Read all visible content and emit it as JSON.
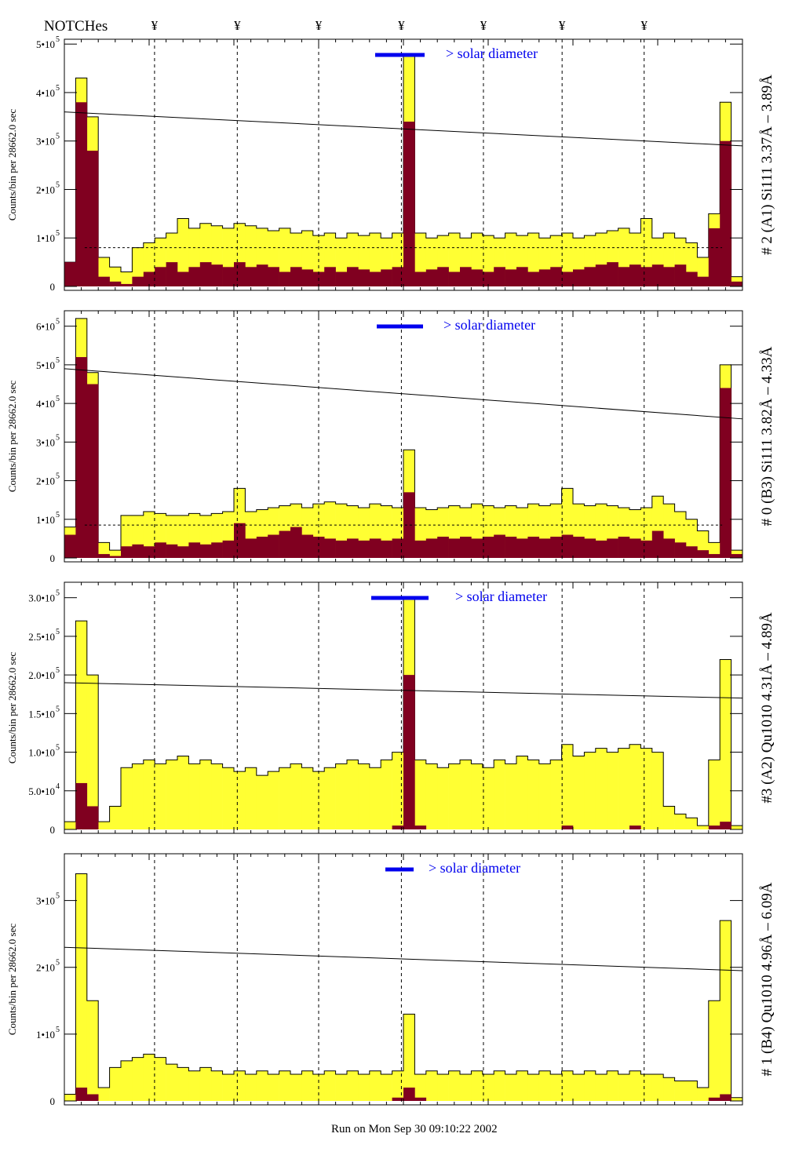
{
  "header": {
    "notches_label": "NOTCHes",
    "notch_marker": "¥"
  },
  "footer": {
    "run_text": "Run on Mon Sep 30 09:10:22 2002"
  },
  "colors": {
    "yellow": "#ffff33",
    "red": "#800020",
    "blue": "#0000ee",
    "black": "#000000"
  },
  "chart_data": [
    {
      "type": "bar",
      "title": "# 2 (A1) Si111  3.37Å – 3.89Å",
      "ylabel": "Counts/bin per  28662.0 sec",
      "legend": "> solar diameter",
      "ylim": [
        0,
        510000
      ],
      "yticks": [
        {
          "v": 0,
          "l": "0",
          "e": ""
        },
        {
          "v": 100000,
          "l": "1•10",
          "e": "5"
        },
        {
          "v": 200000,
          "l": "2•10",
          "e": "5"
        },
        {
          "v": 300000,
          "l": "3•10",
          "e": "5"
        },
        {
          "v": 400000,
          "l": "4•10",
          "e": "5"
        },
        {
          "v": 500000,
          "l": "5•10",
          "e": "5"
        }
      ],
      "notches": [
        0.133,
        0.255,
        0.375,
        0.497,
        0.618,
        0.734,
        0.855
      ],
      "fit_line": [
        360000,
        290000
      ],
      "dashed_level": 80000,
      "total_counts": [
        50000,
        430000,
        350000,
        60000,
        40000,
        30000,
        80000,
        90000,
        100000,
        110000,
        140000,
        120000,
        130000,
        125000,
        120000,
        130000,
        125000,
        120000,
        115000,
        120000,
        110000,
        115000,
        105000,
        110000,
        100000,
        110000,
        105000,
        110000,
        100000,
        110000,
        480000,
        110000,
        100000,
        105000,
        110000,
        100000,
        110000,
        105000,
        100000,
        110000,
        105000,
        110000,
        100000,
        105000,
        110000,
        100000,
        105000,
        110000,
        115000,
        120000,
        110000,
        140000,
        100000,
        110000,
        100000,
        90000,
        60000,
        150000,
        380000,
        20000
      ],
      "peak_counts": [
        50000,
        380000,
        280000,
        20000,
        10000,
        5000,
        20000,
        30000,
        40000,
        50000,
        30000,
        40000,
        50000,
        45000,
        40000,
        50000,
        40000,
        45000,
        40000,
        30000,
        40000,
        35000,
        30000,
        40000,
        30000,
        40000,
        35000,
        30000,
        35000,
        40000,
        340000,
        30000,
        35000,
        40000,
        30000,
        40000,
        35000,
        30000,
        40000,
        35000,
        40000,
        30000,
        35000,
        40000,
        30000,
        35000,
        40000,
        45000,
        50000,
        40000,
        45000,
        40000,
        45000,
        40000,
        45000,
        30000,
        20000,
        120000,
        300000,
        10000
      ]
    },
    {
      "type": "bar",
      "title": "# 0 (B3) Si111  3.82Å – 4.33Å",
      "ylabel": "Counts/bin per  28662.0 sec",
      "legend": "> solar diameter",
      "ylim": [
        0,
        640000
      ],
      "yticks": [
        {
          "v": 0,
          "l": "0",
          "e": ""
        },
        {
          "v": 100000,
          "l": "1•10",
          "e": "5"
        },
        {
          "v": 200000,
          "l": "2•10",
          "e": "5"
        },
        {
          "v": 300000,
          "l": "3•10",
          "e": "5"
        },
        {
          "v": 400000,
          "l": "4•10",
          "e": "5"
        },
        {
          "v": 500000,
          "l": "5•10",
          "e": "5"
        },
        {
          "v": 600000,
          "l": "6•10",
          "e": "5"
        }
      ],
      "notches": [
        0.133,
        0.255,
        0.375,
        0.497,
        0.618,
        0.734,
        0.855
      ],
      "fit_line": [
        490000,
        360000
      ],
      "dashed_level": 85000,
      "total_counts": [
        80000,
        620000,
        480000,
        40000,
        20000,
        110000,
        110000,
        120000,
        115000,
        110000,
        110000,
        115000,
        110000,
        115000,
        120000,
        180000,
        120000,
        125000,
        130000,
        135000,
        140000,
        130000,
        140000,
        145000,
        140000,
        135000,
        130000,
        140000,
        135000,
        130000,
        280000,
        130000,
        125000,
        130000,
        135000,
        130000,
        140000,
        135000,
        130000,
        135000,
        130000,
        140000,
        135000,
        140000,
        180000,
        140000,
        135000,
        140000,
        135000,
        130000,
        125000,
        130000,
        160000,
        140000,
        120000,
        100000,
        70000,
        40000,
        500000,
        20000
      ],
      "peak_counts": [
        60000,
        520000,
        450000,
        10000,
        5000,
        30000,
        35000,
        30000,
        40000,
        35000,
        30000,
        40000,
        35000,
        40000,
        45000,
        90000,
        50000,
        55000,
        60000,
        70000,
        80000,
        60000,
        55000,
        50000,
        45000,
        50000,
        45000,
        50000,
        45000,
        50000,
        170000,
        45000,
        50000,
        55000,
        50000,
        55000,
        50000,
        55000,
        60000,
        55000,
        50000,
        55000,
        50000,
        55000,
        60000,
        55000,
        50000,
        45000,
        50000,
        55000,
        50000,
        45000,
        70000,
        50000,
        40000,
        30000,
        20000,
        10000,
        440000,
        10000
      ]
    },
    {
      "type": "bar",
      "title": "#3 (A2) Qu1010  4.31Å – 4.89Å",
      "ylabel": "Counts/bin per  28662.0 sec",
      "legend": "> solar diameter",
      "ylim": [
        0,
        320000
      ],
      "yticks": [
        {
          "v": 0,
          "l": "0",
          "e": ""
        },
        {
          "v": 50000,
          "l": "5.0•10",
          "e": "4"
        },
        {
          "v": 100000,
          "l": "1.0•10",
          "e": "5"
        },
        {
          "v": 150000,
          "l": "1.5•10",
          "e": "5"
        },
        {
          "v": 200000,
          "l": "2.0•10",
          "e": "5"
        },
        {
          "v": 250000,
          "l": "2.5•10",
          "e": "5"
        },
        {
          "v": 300000,
          "l": "3.0•10",
          "e": "5"
        }
      ],
      "notches": [
        0.133,
        0.255,
        0.375,
        0.497,
        0.618,
        0.734,
        0.855
      ],
      "fit_line": [
        190000,
        170000
      ],
      "dashed_level": 0,
      "total_counts": [
        10000,
        270000,
        200000,
        10000,
        30000,
        80000,
        85000,
        90000,
        85000,
        90000,
        95000,
        85000,
        90000,
        85000,
        80000,
        75000,
        80000,
        70000,
        75000,
        80000,
        85000,
        80000,
        75000,
        80000,
        85000,
        90000,
        85000,
        80000,
        90000,
        100000,
        300000,
        90000,
        85000,
        80000,
        85000,
        90000,
        85000,
        80000,
        90000,
        85000,
        95000,
        90000,
        85000,
        90000,
        110000,
        95000,
        100000,
        105000,
        100000,
        105000,
        110000,
        105000,
        100000,
        30000,
        20000,
        15000,
        5000,
        90000,
        220000,
        5000
      ],
      "peak_counts": [
        0,
        60000,
        30000,
        0,
        0,
        0,
        0,
        0,
        0,
        0,
        0,
        0,
        0,
        0,
        0,
        0,
        0,
        0,
        0,
        0,
        0,
        0,
        0,
        0,
        0,
        0,
        0,
        0,
        0,
        5000,
        200000,
        5000,
        0,
        0,
        0,
        0,
        0,
        0,
        0,
        0,
        0,
        0,
        0,
        0,
        5000,
        0,
        0,
        0,
        0,
        0,
        5000,
        0,
        0,
        0,
        0,
        0,
        0,
        5000,
        10000,
        0
      ]
    },
    {
      "type": "bar",
      "title": "# 1 (B4) Qu1010 4.96Å – 6.09Å",
      "ylabel": "Counts/bin per  28662.0 sec",
      "legend": "> solar diameter",
      "ylim": [
        0,
        370000
      ],
      "yticks": [
        {
          "v": 0,
          "l": "0",
          "e": ""
        },
        {
          "v": 100000,
          "l": "1•10",
          "e": "5"
        },
        {
          "v": 200000,
          "l": "2•10",
          "e": "5"
        },
        {
          "v": 300000,
          "l": "3•10",
          "e": "5"
        }
      ],
      "notches": [
        0.133,
        0.255,
        0.375,
        0.497,
        0.618,
        0.734,
        0.855
      ],
      "fit_line": [
        230000,
        195000
      ],
      "dashed_level": 0,
      "total_counts": [
        10000,
        340000,
        150000,
        20000,
        50000,
        60000,
        65000,
        70000,
        65000,
        55000,
        50000,
        45000,
        50000,
        45000,
        40000,
        45000,
        40000,
        45000,
        40000,
        45000,
        40000,
        45000,
        40000,
        45000,
        40000,
        45000,
        40000,
        45000,
        40000,
        45000,
        130000,
        40000,
        45000,
        40000,
        45000,
        40000,
        45000,
        40000,
        45000,
        40000,
        45000,
        40000,
        45000,
        40000,
        45000,
        40000,
        45000,
        40000,
        45000,
        40000,
        45000,
        40000,
        40000,
        35000,
        30000,
        30000,
        20000,
        150000,
        270000,
        5000
      ],
      "peak_counts": [
        0,
        20000,
        10000,
        0,
        0,
        0,
        0,
        0,
        0,
        0,
        0,
        0,
        0,
        0,
        0,
        0,
        0,
        0,
        0,
        0,
        0,
        0,
        0,
        0,
        0,
        0,
        0,
        0,
        0,
        5000,
        20000,
        5000,
        0,
        0,
        0,
        0,
        0,
        0,
        0,
        0,
        0,
        0,
        0,
        0,
        0,
        0,
        0,
        0,
        0,
        0,
        0,
        0,
        0,
        0,
        0,
        0,
        0,
        5000,
        10000,
        0
      ]
    }
  ]
}
